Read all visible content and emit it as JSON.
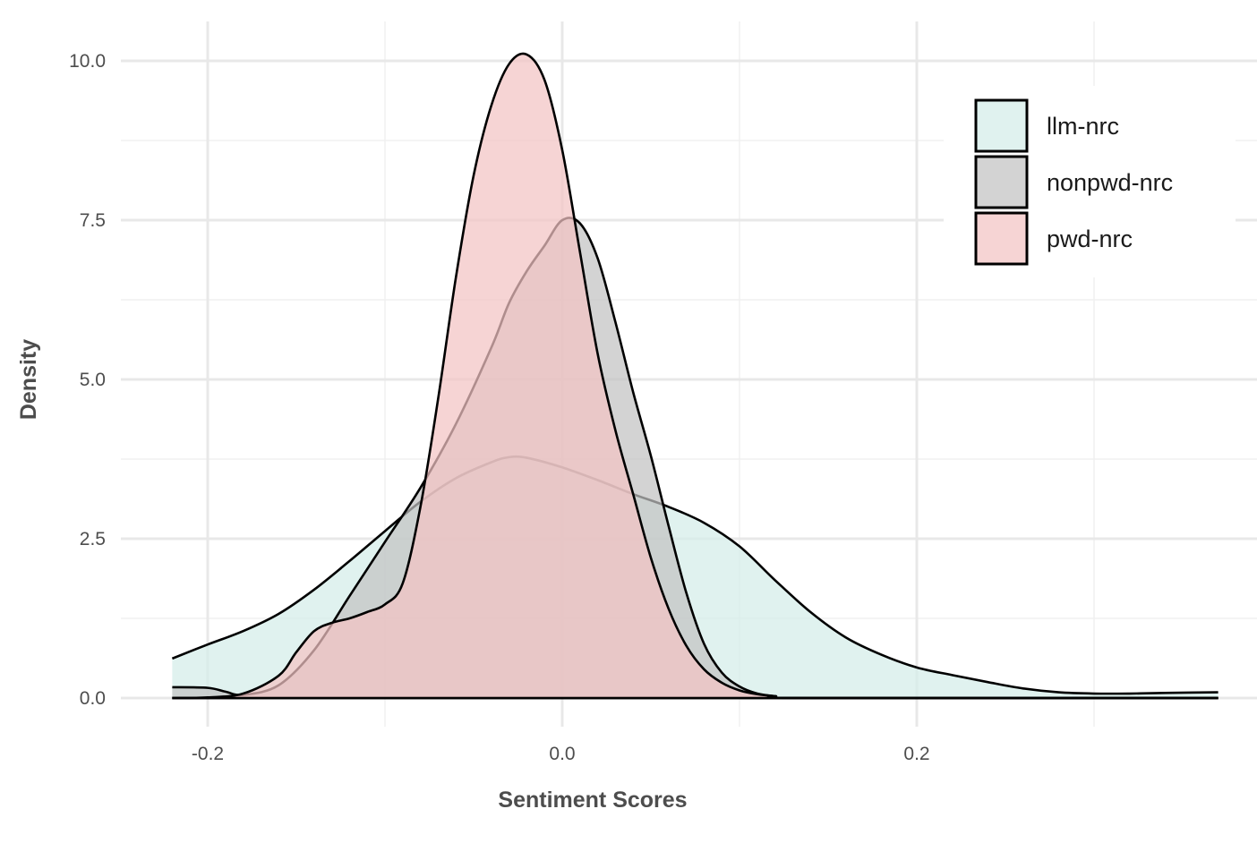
{
  "chart_data": {
    "type": "area",
    "xlabel": "Sentiment Scores",
    "ylabel": "Density",
    "xlim": [
      -0.25,
      0.39
    ],
    "ylim": [
      -0.45,
      10.65
    ],
    "x_ticks": [
      -0.2,
      0.0,
      0.2
    ],
    "x_tick_labels": [
      "-0.2",
      "0.0",
      "0.2"
    ],
    "y_ticks": [
      0.0,
      2.5,
      5.0,
      7.5,
      10.0
    ],
    "y_tick_labels": [
      "0.0",
      "2.5",
      "5.0",
      "7.5",
      "10.0"
    ],
    "grid": true,
    "legend_position": "top-right",
    "series": [
      {
        "name": "llm-nrc",
        "fill": "#d4ede9",
        "points": [
          [
            -0.22,
            0.62
          ],
          [
            -0.2,
            0.84
          ],
          [
            -0.18,
            1.05
          ],
          [
            -0.16,
            1.32
          ],
          [
            -0.14,
            1.7
          ],
          [
            -0.12,
            2.15
          ],
          [
            -0.1,
            2.62
          ],
          [
            -0.08,
            3.08
          ],
          [
            -0.06,
            3.45
          ],
          [
            -0.04,
            3.7
          ],
          [
            -0.03,
            3.78
          ],
          [
            -0.02,
            3.77
          ],
          [
            0.0,
            3.62
          ],
          [
            0.02,
            3.42
          ],
          [
            0.04,
            3.2
          ],
          [
            0.06,
            3.0
          ],
          [
            0.08,
            2.75
          ],
          [
            0.1,
            2.38
          ],
          [
            0.12,
            1.85
          ],
          [
            0.14,
            1.35
          ],
          [
            0.16,
            0.95
          ],
          [
            0.18,
            0.68
          ],
          [
            0.2,
            0.48
          ],
          [
            0.22,
            0.36
          ],
          [
            0.24,
            0.25
          ],
          [
            0.26,
            0.15
          ],
          [
            0.28,
            0.09
          ],
          [
            0.3,
            0.07
          ],
          [
            0.32,
            0.07
          ],
          [
            0.34,
            0.08
          ],
          [
            0.37,
            0.09
          ]
        ]
      },
      {
        "name": "nonpwd-nrc",
        "fill": "#c2c2c2",
        "points": [
          [
            -0.22,
            0.17
          ],
          [
            -0.2,
            0.16
          ],
          [
            -0.19,
            0.1
          ],
          [
            -0.18,
            0.05
          ],
          [
            -0.16,
            0.2
          ],
          [
            -0.14,
            0.75
          ],
          [
            -0.12,
            1.6
          ],
          [
            -0.1,
            2.45
          ],
          [
            -0.08,
            3.3
          ],
          [
            -0.06,
            4.3
          ],
          [
            -0.04,
            5.5
          ],
          [
            -0.03,
            6.2
          ],
          [
            -0.02,
            6.7
          ],
          [
            -0.01,
            7.1
          ],
          [
            0.0,
            7.5
          ],
          [
            0.01,
            7.45
          ],
          [
            0.02,
            6.9
          ],
          [
            0.03,
            5.9
          ],
          [
            0.04,
            4.8
          ],
          [
            0.05,
            3.8
          ],
          [
            0.06,
            2.7
          ],
          [
            0.07,
            1.65
          ],
          [
            0.08,
            0.85
          ],
          [
            0.09,
            0.4
          ],
          [
            0.1,
            0.18
          ],
          [
            0.11,
            0.07
          ],
          [
            0.12,
            0.03
          ],
          [
            0.14,
            0.0
          ],
          [
            0.37,
            0.0
          ]
        ]
      },
      {
        "name": "pwd-nrc",
        "fill": "#f2c4c4",
        "points": [
          [
            -0.22,
            0.0
          ],
          [
            -0.2,
            0.01
          ],
          [
            -0.18,
            0.07
          ],
          [
            -0.16,
            0.35
          ],
          [
            -0.15,
            0.72
          ],
          [
            -0.14,
            1.05
          ],
          [
            -0.13,
            1.18
          ],
          [
            -0.12,
            1.25
          ],
          [
            -0.11,
            1.35
          ],
          [
            -0.1,
            1.47
          ],
          [
            -0.09,
            1.8
          ],
          [
            -0.08,
            3.0
          ],
          [
            -0.07,
            4.7
          ],
          [
            -0.06,
            6.6
          ],
          [
            -0.05,
            8.2
          ],
          [
            -0.04,
            9.3
          ],
          [
            -0.03,
            9.95
          ],
          [
            -0.02,
            10.1
          ],
          [
            -0.01,
            9.7
          ],
          [
            0.0,
            8.6
          ],
          [
            0.01,
            7.0
          ],
          [
            0.02,
            5.4
          ],
          [
            0.03,
            4.2
          ],
          [
            0.04,
            3.2
          ],
          [
            0.05,
            2.2
          ],
          [
            0.06,
            1.4
          ],
          [
            0.07,
            0.82
          ],
          [
            0.08,
            0.45
          ],
          [
            0.09,
            0.24
          ],
          [
            0.1,
            0.12
          ],
          [
            0.11,
            0.06
          ],
          [
            0.12,
            0.03
          ],
          [
            0.14,
            0.0
          ],
          [
            0.37,
            0.0
          ]
        ]
      }
    ]
  }
}
